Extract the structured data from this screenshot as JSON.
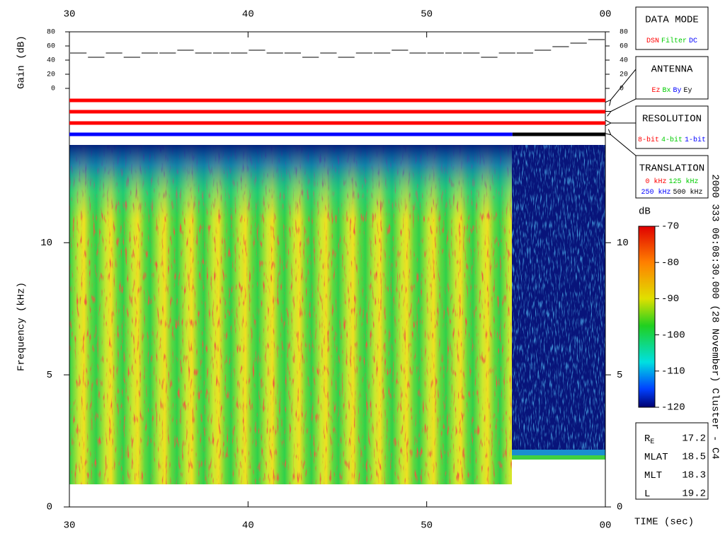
{
  "chart_data": [
    {
      "type": "step",
      "y_label": "Gain (dB)",
      "x": [
        30,
        31,
        32,
        33,
        34,
        35,
        36,
        37,
        38,
        39,
        40,
        41,
        42,
        43,
        44,
        45,
        46,
        47,
        48,
        49,
        50,
        51,
        52,
        53,
        54,
        55,
        56,
        57,
        58,
        59
      ],
      "values": [
        50,
        44,
        50,
        44,
        50,
        50,
        54,
        50,
        50,
        50,
        54,
        50,
        50,
        44,
        50,
        44,
        50,
        50,
        54,
        50,
        50,
        50,
        50,
        44,
        50,
        50,
        54,
        59,
        64,
        69
      ],
      "color": "#000000",
      "xlim": [
        30,
        60
      ],
      "ylim": [
        0,
        80
      ],
      "yticks": [
        0,
        20,
        40,
        60,
        80
      ]
    },
    {
      "type": "status",
      "xlim": [
        30,
        60
      ],
      "rows": [
        {
          "segments": [
            {
              "x": [
                30,
                60
              ],
              "color": "#ff0000"
            }
          ]
        },
        {
          "segments": [
            {
              "x": [
                30,
                60
              ],
              "color": "#ff0000"
            }
          ]
        },
        {
          "segments": [
            {
              "x": [
                30,
                60
              ],
              "color": "#ff0000"
            }
          ]
        },
        {
          "segments": [
            {
              "x": [
                30,
                54.8
              ],
              "color": "#0000ff"
            },
            {
              "x": [
                54.8,
                60
              ],
              "color": "#000000"
            }
          ]
        }
      ]
    },
    {
      "type": "spectrogram",
      "x_label": "TIME (sec)",
      "y_label": "Frequency (kHz)",
      "xlim": [
        30,
        60
      ],
      "xticks": [
        30,
        40,
        50,
        {
          "value": 60,
          "label": "00"
        }
      ],
      "ylim": [
        0,
        13.7
      ],
      "yticks": [
        0,
        5,
        10
      ],
      "colorbar": {
        "label": "dB",
        "lim": [
          -120,
          -70
        ],
        "ticks": [
          -70,
          -80,
          -90,
          -100,
          -110,
          -120
        ]
      },
      "caption": "2000 333 06:08:30.000 (28 November)  Cluster - C4"
    }
  ],
  "panels": [
    {
      "title": "DATA MODE",
      "lines": [
        [
          {
            "text": "DSN",
            "color": "#ff0000"
          },
          {
            "text": "Filter",
            "color": "#00cc00"
          },
          {
            "text": "DC",
            "color": "#0000ff"
          }
        ]
      ]
    },
    {
      "title": "ANTENNA",
      "lines": [
        [
          {
            "text": "Ez",
            "color": "#ff0000"
          },
          {
            "text": "Bx",
            "color": "#00cc00"
          },
          {
            "text": "By",
            "color": "#0000ff"
          },
          {
            "text": "Ey",
            "color": "#000000"
          }
        ]
      ]
    },
    {
      "title": "RESOLUTION",
      "lines": [
        [
          {
            "text": "8-bit",
            "color": "#ff0000"
          },
          {
            "text": "4-bit",
            "color": "#00cc00"
          },
          {
            "text": "1-bit",
            "color": "#0000ff"
          }
        ]
      ]
    },
    {
      "title": "TRANSLATION",
      "lines": [
        [
          {
            "text": "0 kHz",
            "color": "#ff0000"
          },
          {
            "text": "125 kHz",
            "color": "#00cc00"
          }
        ],
        [
          {
            "text": "250 kHz",
            "color": "#0000ff"
          },
          {
            "text": "500 kHz",
            "color": "#000000"
          }
        ]
      ]
    }
  ],
  "ephemeris": [
    {
      "label": "R",
      "subscript": "E",
      "value": 17.2
    },
    {
      "label": "MLAT",
      "value": 18.5
    },
    {
      "label": "MLT",
      "value": 18.3
    },
    {
      "label": "L",
      "value": 19.2
    }
  ]
}
